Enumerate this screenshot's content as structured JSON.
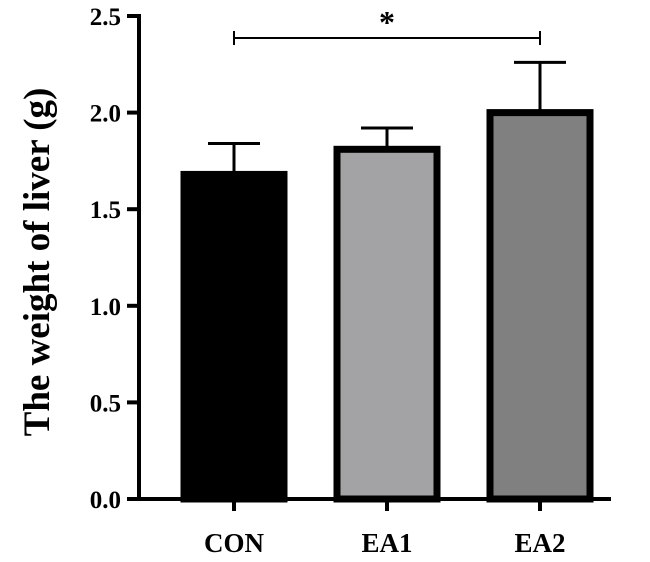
{
  "chart_data": {
    "type": "bar",
    "title": "",
    "xlabel": "",
    "ylabel": "The weight of liver (g)",
    "ylim": [
      0,
      2.5
    ],
    "yticks": [
      0.0,
      0.5,
      1.0,
      1.5,
      2.0,
      2.5
    ],
    "ytick_labels": [
      "0.0",
      "0.5",
      "1.0",
      "1.5",
      "2.0",
      "2.5"
    ],
    "categories": [
      "CON",
      "EA1",
      "EA2"
    ],
    "values": [
      1.68,
      1.81,
      2.0
    ],
    "error": [
      0.16,
      0.11,
      0.26
    ],
    "colors": [
      "#000000",
      "#a3a3a6",
      "#808080"
    ],
    "significance": [
      {
        "from": "CON",
        "to": "EA2",
        "label": "*"
      }
    ],
    "grid": false
  }
}
